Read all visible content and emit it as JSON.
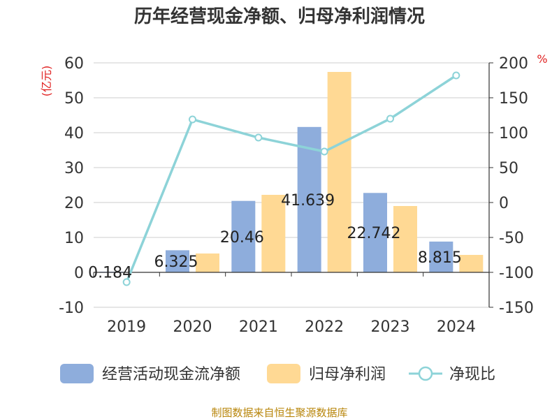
{
  "chart_data": {
    "type": "bar",
    "title": "历年经营现金净额、归母净利润情况",
    "categories": [
      "2019",
      "2020",
      "2021",
      "2022",
      "2023",
      "2024"
    ],
    "series": [
      {
        "name": "经营活动现金流净额",
        "type": "bar",
        "axis": "left",
        "color": "#8eaddc",
        "values": [
          0.184,
          6.325,
          20.46,
          41.639,
          22.742,
          8.815
        ],
        "labels": [
          "0.184",
          "6.325",
          "20.46",
          "41.639",
          "22.742",
          "8.815"
        ]
      },
      {
        "name": "归母净利润",
        "type": "bar",
        "axis": "left",
        "color": "#ffd994",
        "values": [
          0.1,
          5.4,
          22.2,
          57.4,
          19.0,
          5.0
        ]
      },
      {
        "name": "净现比",
        "type": "line",
        "axis": "right",
        "color": "#8dd3d8",
        "values": [
          -114,
          119,
          93,
          73,
          120,
          182
        ]
      }
    ],
    "y_left": {
      "unit": "(亿元)",
      "min": -10,
      "max": 60,
      "ticks": [
        -10,
        0,
        10,
        20,
        30,
        40,
        50,
        60
      ]
    },
    "y_right": {
      "unit": "%",
      "min": -150,
      "max": 200,
      "ticks": [
        -150,
        -100,
        -50,
        0,
        50,
        100,
        150,
        200
      ]
    },
    "grid": true,
    "legend_position": "bottom"
  },
  "source_text": "制图数据来自恒生聚源数据库"
}
